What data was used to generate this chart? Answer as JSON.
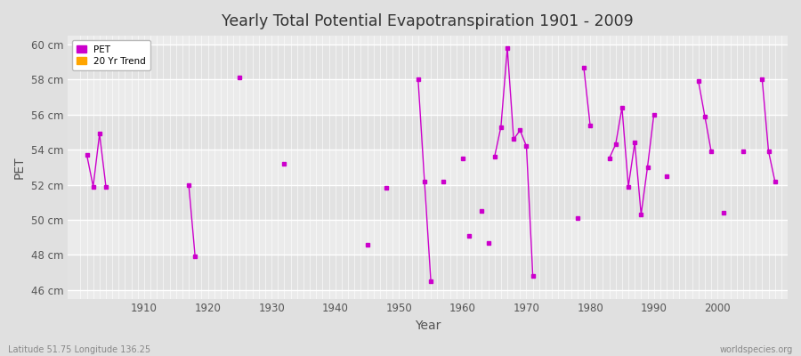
{
  "title": "Yearly Total Potential Evapotranspiration 1901 - 2009",
  "xlabel": "Year",
  "ylabel": "PET",
  "bottom_left": "Latitude 51.75 Longitude 136.25",
  "bottom_right": "worldspecies.org",
  "ylim": [
    45.5,
    60.5
  ],
  "yticks": [
    46,
    48,
    50,
    52,
    54,
    56,
    58,
    60
  ],
  "ytick_labels": [
    "46 cm",
    "48 cm",
    "50 cm",
    "52 cm",
    "54 cm",
    "56 cm",
    "58 cm",
    "60 cm"
  ],
  "xlim": [
    1898,
    2011
  ],
  "xticks": [
    1910,
    1920,
    1930,
    1940,
    1950,
    1960,
    1970,
    1980,
    1990,
    2000
  ],
  "pet_color": "#cc00cc",
  "trend_color": "#ffa500",
  "bg_color": "#e0e0e0",
  "plot_bg_light": "#ebebeb",
  "plot_bg_dark": "#e2e2e2",
  "grid_color": "#ffffff",
  "pet_data": [
    [
      1901,
      53.7
    ],
    [
      1902,
      51.9
    ],
    [
      1903,
      54.9
    ],
    [
      1904,
      51.9
    ],
    [
      1917,
      52.0
    ],
    [
      1918,
      47.9
    ],
    [
      1925,
      58.1
    ],
    [
      1932,
      53.2
    ],
    [
      1945,
      48.6
    ],
    [
      1948,
      51.8
    ],
    [
      1953,
      58.0
    ],
    [
      1954,
      52.2
    ],
    [
      1955,
      46.5
    ],
    [
      1957,
      52.2
    ],
    [
      1960,
      53.5
    ],
    [
      1961,
      49.1
    ],
    [
      1963,
      50.5
    ],
    [
      1964,
      48.7
    ],
    [
      1965,
      53.6
    ],
    [
      1966,
      55.3
    ],
    [
      1967,
      59.8
    ],
    [
      1968,
      54.6
    ],
    [
      1969,
      55.1
    ],
    [
      1970,
      54.2
    ],
    [
      1971,
      46.8
    ],
    [
      1978,
      50.1
    ],
    [
      1979,
      58.7
    ],
    [
      1980,
      55.4
    ],
    [
      1983,
      53.5
    ],
    [
      1984,
      54.3
    ],
    [
      1985,
      56.4
    ],
    [
      1986,
      51.9
    ],
    [
      1987,
      54.4
    ],
    [
      1988,
      50.3
    ],
    [
      1989,
      53.0
    ],
    [
      1990,
      56.0
    ],
    [
      1992,
      52.5
    ],
    [
      1997,
      57.9
    ],
    [
      1998,
      55.9
    ],
    [
      1999,
      53.9
    ],
    [
      2001,
      50.4
    ],
    [
      2004,
      53.9
    ],
    [
      2007,
      58.0
    ],
    [
      2008,
      53.9
    ],
    [
      2009,
      52.2
    ]
  ],
  "connected_segments": [
    [
      1901,
      1902,
      1903,
      1904
    ],
    [
      1917,
      1918
    ],
    [
      1953,
      1954,
      1955
    ],
    [
      1965,
      1966,
      1967,
      1968,
      1969,
      1970,
      1971
    ],
    [
      1979,
      1980
    ],
    [
      1983,
      1984,
      1985,
      1986,
      1987,
      1988,
      1989,
      1990
    ],
    [
      1997,
      1998,
      1999
    ],
    [
      2007,
      2008,
      2009
    ]
  ]
}
